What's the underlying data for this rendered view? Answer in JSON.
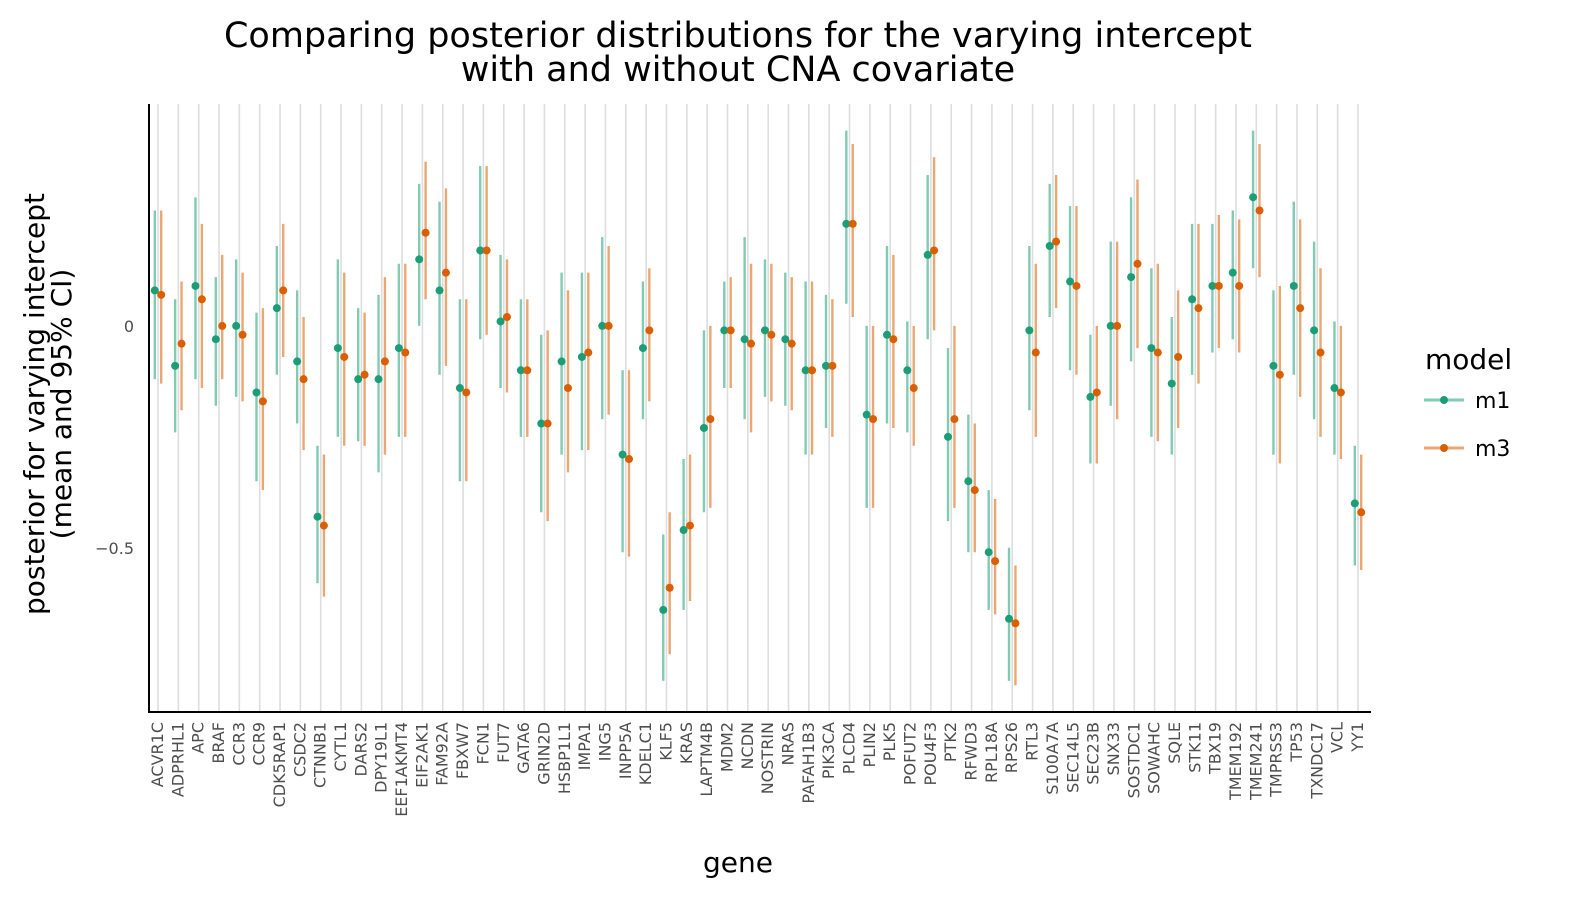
{
  "chart_data": {
    "type": "pointrange",
    "title_line1": "Comparing posterior distributions for the varying intercept",
    "title_line2": "with and without CNA covariate",
    "xlabel": "gene",
    "ylabel_line1": "posterior for varying intercept",
    "ylabel_line2": "(mean and 95% CI)",
    "ylim": [
      -0.87,
      0.5
    ],
    "yticks": [
      {
        "value": 0,
        "label": "0"
      },
      {
        "value": -0.5,
        "label": "−0.5"
      }
    ],
    "grid": {
      "vertical": true,
      "horizontal": false
    },
    "legend": {
      "title": "model",
      "position": "right"
    },
    "categories": [
      "ACVR1C",
      "ADPRHL1",
      "APC",
      "BRAF",
      "CCR3",
      "CCR9",
      "CDK5RAP1",
      "CSDC2",
      "CTNNB1",
      "CYTL1",
      "DARS2",
      "DPY19L1",
      "EEF1AKMT4",
      "EIF2AK1",
      "FAM92A",
      "FBXW7",
      "FCN1",
      "FUT7",
      "GATA6",
      "GRIN2D",
      "HSBP1L1",
      "IMPA1",
      "ING5",
      "INPP5A",
      "KDELC1",
      "KLF5",
      "KRAS",
      "LAPTM4B",
      "MDM2",
      "NCDN",
      "NOSTRIN",
      "NRAS",
      "PAFAH1B3",
      "PIK3CA",
      "PLCD4",
      "PLIN2",
      "PLK5",
      "POFUT2",
      "POU4F3",
      "PTK2",
      "RFWD3",
      "RPL18A",
      "RPS26",
      "RTL3",
      "S100A7A",
      "SEC14L5",
      "SEC23B",
      "SNX33",
      "SOSTDC1",
      "SOWAHC",
      "SQLE",
      "STK11",
      "TBX19",
      "TMEM192",
      "TMEM241",
      "TMPRSS3",
      "TP53",
      "TXNDC17",
      "VCL",
      "YY1"
    ],
    "series": [
      {
        "name": "m1",
        "color": "#1b9e77",
        "mean": [
          0.08,
          -0.09,
          0.09,
          -0.03,
          0.0,
          -0.15,
          0.04,
          -0.08,
          -0.43,
          -0.05,
          -0.12,
          -0.12,
          -0.05,
          0.15,
          0.08,
          -0.14,
          0.17,
          0.01,
          -0.1,
          -0.22,
          -0.08,
          -0.07,
          0.0,
          -0.29,
          -0.05,
          -0.64,
          -0.46,
          -0.23,
          -0.01,
          -0.03,
          -0.01,
          -0.03,
          -0.1,
          -0.09,
          0.23,
          -0.2,
          -0.02,
          -0.1,
          0.16,
          -0.25,
          -0.35,
          -0.51,
          -0.66,
          -0.01,
          0.18,
          0.1,
          -0.16,
          0.0,
          0.11,
          -0.05,
          -0.13,
          0.06,
          0.09,
          0.12,
          0.29,
          -0.09,
          0.09,
          -0.01,
          -0.14,
          -0.4
        ],
        "lo": [
          -0.12,
          -0.24,
          -0.12,
          -0.18,
          -0.16,
          -0.35,
          -0.11,
          -0.22,
          -0.58,
          -0.25,
          -0.26,
          -0.33,
          -0.25,
          0.0,
          -0.11,
          -0.35,
          -0.03,
          -0.14,
          -0.25,
          -0.42,
          -0.29,
          -0.28,
          -0.21,
          -0.51,
          -0.21,
          -0.8,
          -0.64,
          -0.42,
          -0.14,
          -0.21,
          -0.16,
          -0.18,
          -0.29,
          -0.23,
          0.05,
          -0.41,
          -0.22,
          -0.24,
          -0.03,
          -0.44,
          -0.51,
          -0.64,
          -0.8,
          -0.19,
          0.02,
          -0.1,
          -0.31,
          -0.18,
          -0.08,
          -0.25,
          -0.29,
          -0.11,
          -0.06,
          -0.03,
          0.13,
          -0.29,
          -0.11,
          -0.21,
          -0.29,
          -0.54
        ],
        "hi": [
          0.26,
          0.06,
          0.29,
          0.11,
          0.15,
          0.03,
          0.18,
          0.08,
          -0.27,
          0.15,
          0.04,
          0.07,
          0.14,
          0.32,
          0.28,
          0.06,
          0.36,
          0.16,
          0.06,
          -0.02,
          0.12,
          0.12,
          0.2,
          -0.1,
          0.1,
          -0.47,
          -0.3,
          -0.01,
          0.1,
          0.2,
          0.15,
          0.12,
          0.1,
          0.07,
          0.44,
          0.0,
          0.18,
          0.01,
          0.34,
          -0.05,
          -0.2,
          -0.37,
          -0.5,
          0.18,
          0.32,
          0.27,
          -0.02,
          0.19,
          0.29,
          0.13,
          0.02,
          0.23,
          0.23,
          0.26,
          0.44,
          0.08,
          0.28,
          0.19,
          0.01,
          -0.27
        ]
      },
      {
        "name": "m3",
        "color": "#d95f02",
        "mean": [
          0.07,
          -0.04,
          0.06,
          0.0,
          -0.02,
          -0.17,
          0.08,
          -0.12,
          -0.45,
          -0.07,
          -0.11,
          -0.08,
          -0.06,
          0.21,
          0.12,
          -0.15,
          0.17,
          0.02,
          -0.1,
          -0.22,
          -0.14,
          -0.06,
          0.0,
          -0.3,
          -0.01,
          -0.59,
          -0.45,
          -0.21,
          -0.01,
          -0.04,
          -0.02,
          -0.04,
          -0.1,
          -0.09,
          0.23,
          -0.21,
          -0.03,
          -0.14,
          0.17,
          -0.21,
          -0.37,
          -0.53,
          -0.67,
          -0.06,
          0.19,
          0.09,
          -0.15,
          0.0,
          0.14,
          -0.06,
          -0.07,
          0.04,
          0.09,
          0.09,
          0.26,
          -0.11,
          0.04,
          -0.06,
          -0.15,
          -0.42
        ],
        "lo": [
          -0.13,
          -0.19,
          -0.14,
          -0.12,
          -0.17,
          -0.37,
          -0.07,
          -0.28,
          -0.61,
          -0.27,
          -0.27,
          -0.29,
          -0.25,
          0.06,
          -0.09,
          -0.35,
          -0.02,
          -0.15,
          -0.25,
          -0.44,
          -0.33,
          -0.28,
          -0.2,
          -0.52,
          -0.17,
          -0.74,
          -0.62,
          -0.41,
          -0.14,
          -0.24,
          -0.17,
          -0.19,
          -0.29,
          -0.25,
          0.02,
          -0.41,
          -0.23,
          -0.27,
          -0.01,
          -0.41,
          -0.51,
          -0.65,
          -0.81,
          -0.25,
          0.04,
          -0.11,
          -0.31,
          -0.21,
          -0.05,
          -0.26,
          -0.23,
          -0.13,
          -0.05,
          -0.06,
          0.11,
          -0.31,
          -0.16,
          -0.25,
          -0.3,
          -0.55
        ],
        "hi": [
          0.26,
          0.1,
          0.23,
          0.16,
          0.12,
          0.04,
          0.23,
          0.02,
          -0.29,
          0.12,
          0.03,
          0.11,
          0.14,
          0.37,
          0.31,
          0.06,
          0.36,
          0.15,
          0.06,
          -0.01,
          0.08,
          0.12,
          0.18,
          -0.1,
          0.13,
          -0.42,
          -0.29,
          0.0,
          0.11,
          0.14,
          0.14,
          0.11,
          0.1,
          0.06,
          0.41,
          0.0,
          0.16,
          0.0,
          0.38,
          0.0,
          -0.22,
          -0.39,
          -0.54,
          0.14,
          0.34,
          0.27,
          0.0,
          0.19,
          0.33,
          0.14,
          0.08,
          0.23,
          0.25,
          0.24,
          0.41,
          0.09,
          0.24,
          0.13,
          0.0,
          -0.29
        ]
      }
    ]
  }
}
